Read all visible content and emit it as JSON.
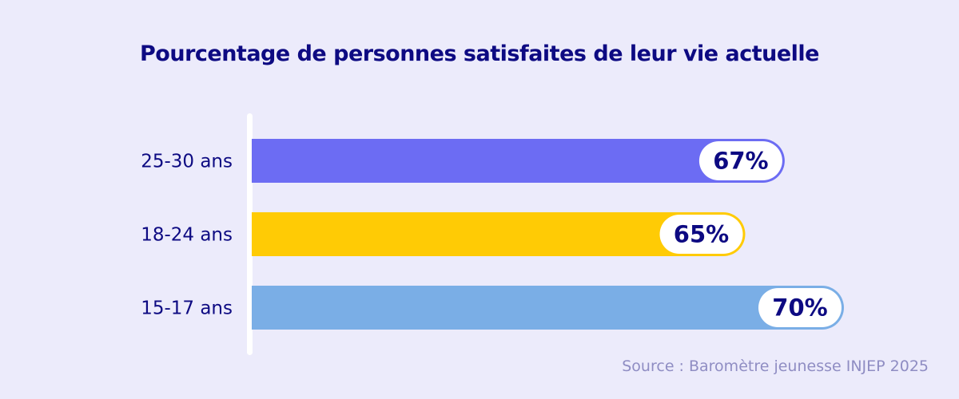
{
  "chart_data": {
    "type": "bar",
    "orientation": "horizontal",
    "title": "Pourcentage de personnes satisfaites de leur vie actuelle",
    "categories": [
      "25-30 ans",
      "18-24 ans",
      "15-17 ans"
    ],
    "values": [
      67,
      65,
      70
    ],
    "value_labels": [
      "67%",
      "65%",
      "70%"
    ],
    "colors": [
      "#6C6CF3",
      "#FFCB05",
      "#7AAEE6"
    ],
    "xlabel": "",
    "ylabel": "",
    "unit": "%",
    "grid": false,
    "source": "Source : Baromètre jeunesse INJEP 2025"
  },
  "theme": {
    "background": "#ECEBFB",
    "text": "#0D0A82",
    "source_text": "#8F8DC3"
  }
}
